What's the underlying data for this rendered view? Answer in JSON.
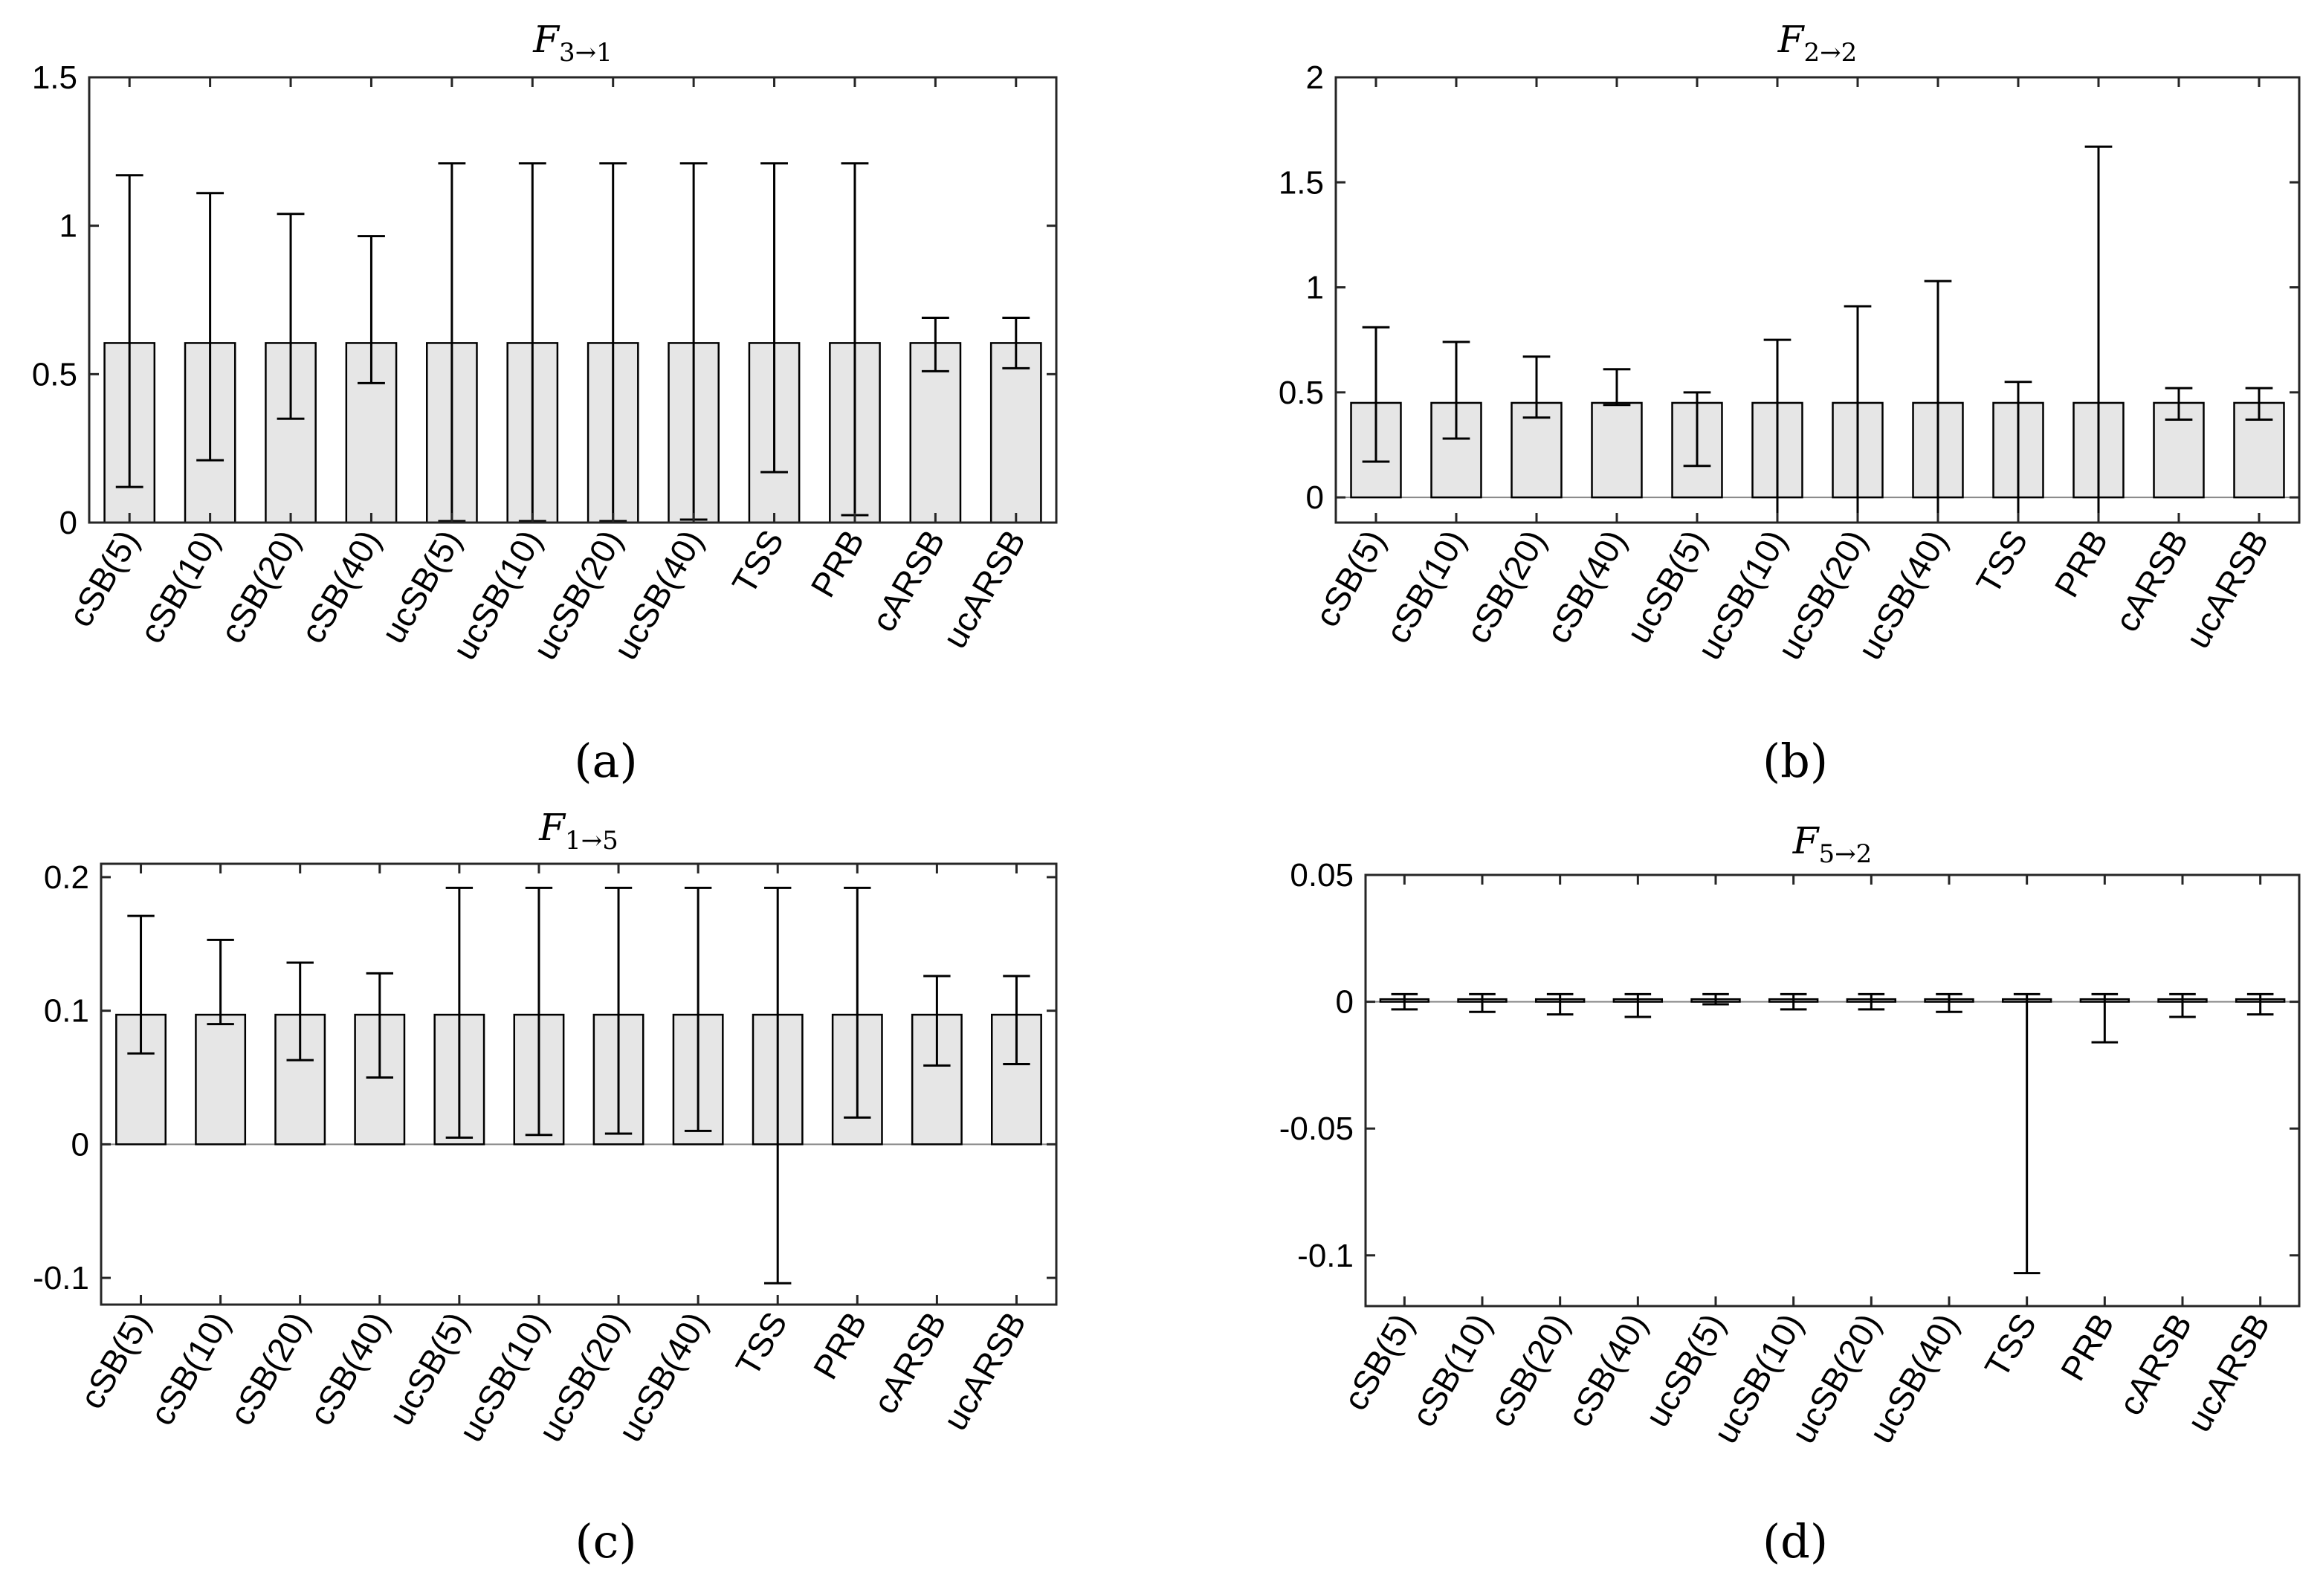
{
  "chart_data": [
    {
      "type": "bar",
      "panel_label": "(a)",
      "title": "F3→1",
      "title_main": "F",
      "title_sub": "3→1",
      "categories": [
        "cSB(5)",
        "cSB(10)",
        "cSB(20)",
        "cSB(40)",
        "ucSB(5)",
        "ucSB(10)",
        "ucSB(20)",
        "ucSB(40)",
        "TSS",
        "PRB",
        "cARSB",
        "ucARSB"
      ],
      "values": [
        0.605,
        0.605,
        0.605,
        0.605,
        0.605,
        0.605,
        0.605,
        0.605,
        0.605,
        0.605,
        0.605,
        0.605
      ],
      "error_low": [
        0.12,
        0.21,
        0.35,
        0.47,
        0.005,
        0.005,
        0.005,
        0.01,
        0.17,
        0.025,
        0.51,
        0.52
      ],
      "error_high": [
        1.17,
        1.11,
        1.04,
        0.965,
        1.21,
        1.21,
        1.21,
        1.21,
        1.21,
        1.21,
        0.69,
        0.69
      ],
      "ylim": [
        0,
        1.5
      ],
      "yticks": [
        0,
        0.5,
        1,
        1.5
      ],
      "ytick_labels": [
        "0",
        "0.5",
        "1",
        "1.5"
      ],
      "xlabel": "",
      "ylabel": "",
      "grid": false
    },
    {
      "type": "bar",
      "panel_label": "(b)",
      "title": "F2→2",
      "title_main": "F",
      "title_sub": "2→2",
      "categories": [
        "cSB(5)",
        "cSB(10)",
        "cSB(20)",
        "cSB(40)",
        "ucSB(5)",
        "ucSB(10)",
        "ucSB(20)",
        "ucSB(40)",
        "TSS",
        "PRB",
        "cARSB",
        "ucARSB"
      ],
      "values": [
        0.45,
        0.45,
        0.45,
        0.45,
        0.45,
        0.45,
        0.45,
        0.45,
        0.45,
        0.45,
        0.45,
        0.45
      ],
      "error_low": [
        0.17,
        0.28,
        0.38,
        0.44,
        0.15,
        -0.12,
        -0.12,
        -0.12,
        -0.12,
        -0.12,
        0.37,
        0.37
      ],
      "error_high": [
        0.81,
        0.74,
        0.67,
        0.61,
        0.5,
        0.75,
        0.91,
        1.03,
        0.55,
        1.67,
        0.52,
        0.52
      ],
      "ylim": [
        -0.12,
        2
      ],
      "yticks": [
        0,
        0.5,
        1,
        1.5,
        2
      ],
      "ytick_labels": [
        "0",
        "0.5",
        "1",
        "1.5",
        "2"
      ],
      "xlabel": "",
      "ylabel": "",
      "grid": false
    },
    {
      "type": "bar",
      "panel_label": "(c)",
      "title": "F1→5",
      "title_main": "F",
      "title_sub": "1→5",
      "categories": [
        "cSB(5)",
        "cSB(10)",
        "cSB(20)",
        "cSB(40)",
        "ucSB(5)",
        "ucSB(10)",
        "ucSB(20)",
        "ucSB(40)",
        "TSS",
        "PRB",
        "cARSB",
        "ucARSB"
      ],
      "values": [
        0.097,
        0.097,
        0.097,
        0.097,
        0.097,
        0.097,
        0.097,
        0.097,
        0.097,
        0.097,
        0.097,
        0.097
      ],
      "error_low": [
        0.068,
        0.09,
        0.063,
        0.05,
        0.005,
        0.007,
        0.008,
        0.01,
        -0.104,
        0.02,
        0.059,
        0.06
      ],
      "error_high": [
        0.171,
        0.153,
        0.136,
        0.128,
        0.192,
        0.192,
        0.192,
        0.192,
        0.192,
        0.192,
        0.126,
        0.126
      ],
      "ylim": [
        -0.12,
        0.21
      ],
      "yticks": [
        -0.1,
        0,
        0.1,
        0.2
      ],
      "ytick_labels": [
        "-0.1",
        "0",
        "0.1",
        "0.2"
      ],
      "xlabel": "",
      "ylabel": "",
      "grid": false
    },
    {
      "type": "bar",
      "panel_label": "(d)",
      "title": "F5→2",
      "title_main": "F",
      "title_sub": "5→2",
      "categories": [
        "cSB(5)",
        "cSB(10)",
        "cSB(20)",
        "cSB(40)",
        "ucSB(5)",
        "ucSB(10)",
        "ucSB(20)",
        "ucSB(40)",
        "TSS",
        "PRB",
        "cARSB",
        "ucARSB"
      ],
      "values": [
        0.001,
        0.001,
        0.001,
        0.001,
        0.001,
        0.001,
        0.001,
        0.001,
        0.001,
        0.001,
        0.001,
        0.001
      ],
      "error_low": [
        -0.003,
        -0.004,
        -0.005,
        -0.006,
        -0.001,
        -0.003,
        -0.003,
        -0.004,
        -0.107,
        -0.016,
        -0.006,
        -0.005
      ],
      "error_high": [
        0.003,
        0.003,
        0.003,
        0.003,
        0.003,
        0.003,
        0.003,
        0.003,
        0.003,
        0.003,
        0.003,
        0.003
      ],
      "ylim": [
        -0.12,
        0.05
      ],
      "yticks": [
        -0.1,
        -0.05,
        0,
        0.05
      ],
      "ytick_labels": [
        "-0.1",
        "-0.05",
        "0",
        "0.05"
      ],
      "xlabel": "",
      "ylabel": "",
      "grid": false
    }
  ],
  "colors": {
    "bar_fill": "#e6e6e6",
    "bar_edge": "#000000",
    "axis": "#262626",
    "zero_line": "#888888",
    "error_bar": "#000000"
  }
}
